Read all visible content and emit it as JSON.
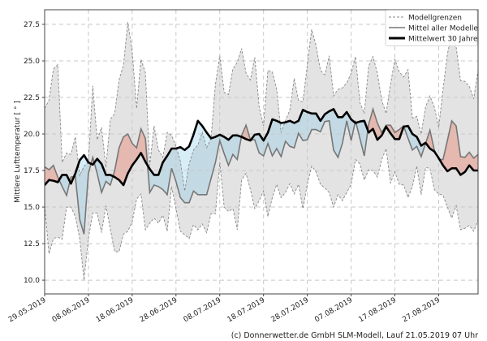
{
  "chart_data": {
    "type": "line",
    "title": "",
    "xlabel": "",
    "ylabel": "Mittlere Lufttemperatur [ ° ]",
    "ylim": [
      9.06,
      28.5
    ],
    "xlim_days": [
      0,
      99
    ],
    "grid": true,
    "legend_position": "top-right",
    "x_ticks": [
      "29.05.2019",
      "08.06.2019",
      "18.06.2019",
      "28.06.2019",
      "08.07.2019",
      "18.07.2019",
      "28.07.2019",
      "07.08.2019",
      "17.08.2019",
      "27.08.2019"
    ],
    "y_ticks": [
      "10.0",
      "12.5",
      "15.0",
      "17.5",
      "20.0",
      "22.5",
      "25.0",
      "27.5"
    ],
    "legend": [
      "Modellgrenzen",
      "Mittel aller Modelle",
      "Mittelwert 30 Jahre"
    ],
    "series": [
      {
        "name": "Modellgrenzen oben",
        "values": [
          21.75,
          22.3,
          24.45,
          24.75,
          18.05,
          18.7,
          18.6,
          19.8,
          17.15,
          17.8,
          18.05,
          23.3,
          19.6,
          20.45,
          17.7,
          21.0,
          21.4,
          23.7,
          24.7,
          27.65,
          25.65,
          21.75,
          25.1,
          24.2,
          17.85,
          20.55,
          18.9,
          18.4,
          20.1,
          19.9,
          19.15,
          18.15,
          16.1,
          17.95,
          18.9,
          19.25,
          20.1,
          19.05,
          19.7,
          23.4,
          25.35,
          22.85,
          22.7,
          24.45,
          24.9,
          25.85,
          24.15,
          23.7,
          25.25,
          21.85,
          20.55,
          24.35,
          24.25,
          23.05,
          20.1,
          20.9,
          21.65,
          23.8,
          22.3,
          22.2,
          24.7,
          27.15,
          26.05,
          24.35,
          24.05,
          25.35,
          22.6,
          23.05,
          23.15,
          23.5,
          24.15,
          25.3,
          22.15,
          21.4,
          24.65,
          25.3,
          24.15,
          22.3,
          21.4,
          23.4,
          25.1,
          24.25,
          23.9,
          24.4,
          21.1,
          21.2,
          20.0,
          21.85,
          22.6,
          21.85,
          20.45,
          23.05,
          25.45,
          26.95,
          25.95,
          23.65,
          23.6,
          23.25,
          22.4,
          24.35
        ]
      },
      {
        "name": "Modellgrenzen unten",
        "values": [
          15.1,
          11.8,
          12.85,
          12.95,
          12.8,
          15.0,
          15.0,
          14.35,
          12.85,
          10.0,
          12.85,
          14.6,
          14.6,
          13.25,
          15.1,
          13.5,
          11.95,
          11.95,
          13.15,
          13.35,
          14.0,
          15.55,
          15.9,
          13.45,
          13.9,
          14.25,
          13.9,
          14.45,
          13.35,
          16.4,
          14.9,
          13.35,
          13.1,
          12.85,
          13.8,
          13.45,
          13.85,
          13.25,
          14.55,
          14.55,
          18.05,
          15.0,
          14.7,
          14.9,
          13.45,
          16.85,
          17.3,
          16.2,
          14.9,
          15.45,
          16.1,
          14.35,
          15.65,
          16.55,
          15.65,
          16.0,
          16.6,
          15.9,
          16.55,
          14.9,
          16.55,
          17.8,
          17.4,
          16.55,
          16.3,
          16.0,
          15.0,
          15.85,
          15.45,
          16.0,
          16.55,
          18.25,
          17.95,
          16.85,
          17.55,
          17.5,
          17.05,
          18.25,
          19.0,
          16.65,
          17.4,
          16.55,
          16.5,
          15.65,
          16.4,
          17.8,
          15.85,
          17.7,
          17.65,
          16.2,
          15.9,
          15.8,
          15.0,
          14.25,
          15.1,
          13.45,
          13.55,
          13.75,
          13.35,
          14.1
        ]
      },
      {
        "name": "Mittel aller Modelle",
        "values": [
          17.75,
          17.55,
          17.85,
          17.05,
          16.4,
          15.8,
          17.05,
          17.1,
          14.15,
          13.15,
          17.3,
          18.4,
          17.3,
          16.0,
          16.75,
          16.5,
          17.5,
          19.05,
          19.8,
          20.0,
          19.35,
          19.05,
          20.35,
          19.7,
          16.0,
          16.5,
          16.4,
          16.2,
          15.85,
          17.65,
          16.75,
          15.65,
          15.3,
          15.3,
          16.1,
          15.85,
          15.85,
          15.85,
          16.95,
          18.05,
          19.55,
          18.65,
          17.85,
          18.6,
          18.25,
          19.9,
          20.6,
          19.6,
          19.6,
          18.7,
          18.5,
          19.35,
          18.5,
          19.0,
          18.45,
          19.5,
          19.15,
          19.05,
          20.05,
          19.55,
          19.6,
          20.3,
          20.3,
          20.15,
          20.85,
          20.9,
          18.9,
          18.4,
          19.35,
          20.9,
          19.55,
          20.9,
          19.7,
          18.5,
          20.65,
          21.7,
          20.75,
          20.1,
          20.6,
          20.6,
          20.1,
          20.3,
          20.55,
          19.7,
          18.9,
          19.15,
          18.45,
          19.35,
          20.25,
          18.9,
          18.25,
          18.25,
          19.55,
          20.9,
          20.55,
          18.45,
          18.4,
          18.75,
          18.35,
          18.6
        ]
      },
      {
        "name": "Mittelwert 30 Jahre",
        "values": [
          16.5,
          16.85,
          16.8,
          16.7,
          17.2,
          17.2,
          16.6,
          17.3,
          18.2,
          18.55,
          18.05,
          17.9,
          18.3,
          17.95,
          17.2,
          17.2,
          17.05,
          16.85,
          16.5,
          17.3,
          17.85,
          18.25,
          18.7,
          18.1,
          17.6,
          17.2,
          17.2,
          18.05,
          18.5,
          19.0,
          19.0,
          19.1,
          18.9,
          19.15,
          19.95,
          20.9,
          20.55,
          20.1,
          19.7,
          19.8,
          19.95,
          19.8,
          19.6,
          19.9,
          19.9,
          19.8,
          19.65,
          19.55,
          19.95,
          20.0,
          19.55,
          20.1,
          21.0,
          20.9,
          20.75,
          20.8,
          20.9,
          20.75,
          20.9,
          21.65,
          21.5,
          21.4,
          21.4,
          20.9,
          21.35,
          21.55,
          21.7,
          21.15,
          21.15,
          21.5,
          21.0,
          20.75,
          20.85,
          20.9,
          20.1,
          20.35,
          19.6,
          19.9,
          20.5,
          20.05,
          19.65,
          19.65,
          20.5,
          20.55,
          20.0,
          19.8,
          19.2,
          19.4,
          19.0,
          18.8,
          18.35,
          17.85,
          17.45,
          17.65,
          17.65,
          17.2,
          17.4,
          17.85,
          17.5,
          17.5
        ]
      }
    ],
    "colors": {
      "band": "#e3e3e3",
      "bound_line": "#888888",
      "model_mean": "#777777",
      "climate": "#000000",
      "warmer": "#e97864",
      "colder": "#7cc6e8"
    },
    "credit": "(c) Donnerwetter.de GmbH SLM-Modell, Lauf 21.05.2019 07 Uhr"
  }
}
